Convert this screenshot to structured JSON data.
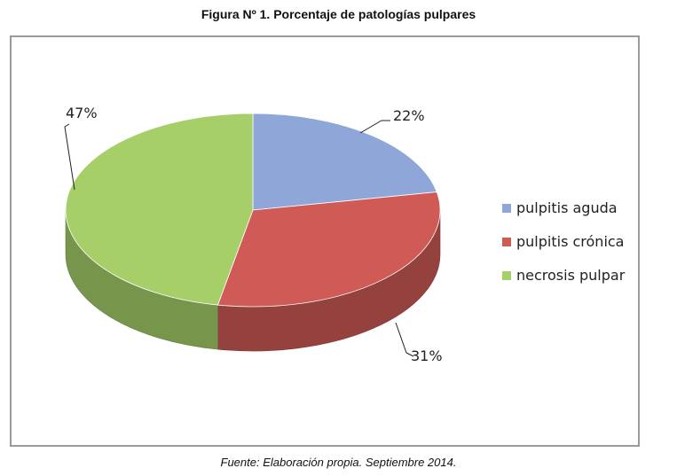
{
  "title": "Figura Nº 1.  Porcentaje de patologías pulpares",
  "source": "Fuente: Elaboración propia. Septiembre 2014.",
  "chart_data": {
    "type": "pie",
    "categories": [
      "pulpitis aguda",
      "pulpitis crónica",
      "necrosis pulpar"
    ],
    "values": [
      22,
      31,
      47
    ],
    "data_labels": [
      "22%",
      "31%",
      "47%"
    ],
    "colors": [
      "#8ea6d8",
      "#cf5a56",
      "#a6cf6a"
    ],
    "legend_position": "right"
  }
}
